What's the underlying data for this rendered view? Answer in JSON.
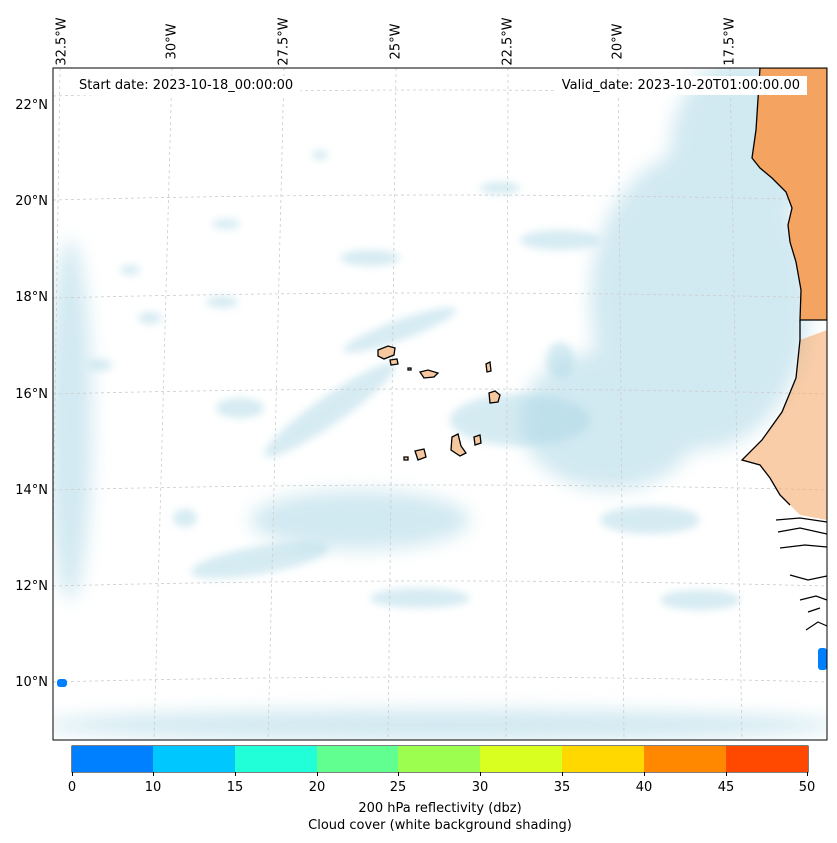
{
  "map": {
    "region": "Cabo Verde and West African coast",
    "longitude_labels": [
      "32.5°W",
      "30°W",
      "27.5°W",
      "25°W",
      "22.5°W",
      "20°W",
      "17.5°W"
    ],
    "latitude_labels": [
      "22°N",
      "20°N",
      "18°N",
      "16°N",
      "14°N",
      "12°N",
      "10°N"
    ],
    "start_label": "Start date: 2023-10-18_00:00:00",
    "valid_label": "Valid_date: 2023-10-20T01:00:00.00",
    "colors": {
      "land": "#f4a460",
      "island_fill": "#f5c8a0",
      "cloud": "#add8e6",
      "gridline": "#cccccc"
    }
  },
  "colorbar": {
    "boundaries": [
      0,
      10,
      15,
      20,
      25,
      30,
      35,
      40,
      45,
      50
    ],
    "colors": [
      "#0080ff",
      "#00c8ff",
      "#20ffd8",
      "#60ff90",
      "#9cff50",
      "#d8ff20",
      "#ffd800",
      "#ff8800",
      "#ff4800"
    ],
    "label": "200 hPa reflectivity (dbz)",
    "sublabel": "Cloud cover (white background shading)"
  }
}
